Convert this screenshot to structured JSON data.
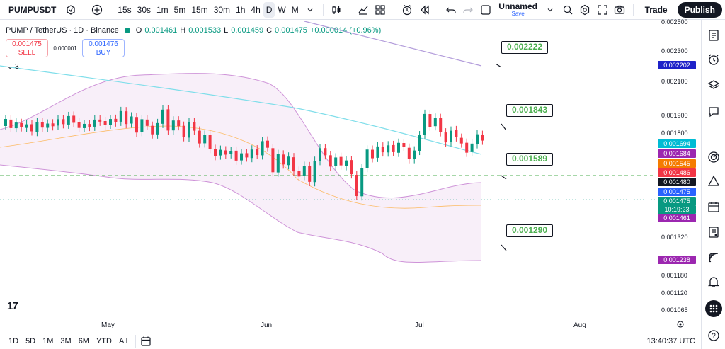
{
  "toolbar": {
    "symbol": "PUMPUSDT",
    "intervals": [
      "15s",
      "30s",
      "1m",
      "5m",
      "15m",
      "30m",
      "1h",
      "4h",
      "D",
      "W",
      "M"
    ],
    "active_interval": "D",
    "layout_name": "Unnamed",
    "save_label": "Save",
    "trade_label": "Trade",
    "publish_label": "Publish"
  },
  "legend": {
    "title": "PUMP / TetherUS · 1D · Binance",
    "o_key": "O",
    "o_val": "0.001461",
    "h_key": "H",
    "h_val": "0.001533",
    "l_key": "L",
    "l_val": "0.001459",
    "c_key": "C",
    "c_val": "0.001475",
    "change": "+0.000014 (+0.96%)",
    "collapse": "3"
  },
  "bidask": {
    "sell_price": "0.001475",
    "sell_label": "SELL",
    "spread": "0.000001",
    "buy_price": "0.001476",
    "buy_label": "BUY"
  },
  "price_scale": {
    "ticks": [
      "0.002500",
      "0.002300",
      "0.002100",
      "0.001900",
      "0.001800",
      "0.001320",
      "0.001180",
      "0.001120",
      "0.001065"
    ],
    "labels": [
      {
        "text": "0.002202",
        "color": "#1e22c8"
      },
      {
        "text": "0.001694",
        "color": "#00bcd4"
      },
      {
        "text": "0.001684",
        "color": "#9c27b0"
      },
      {
        "text": "0.001545",
        "color": "#f57c00"
      },
      {
        "text": "0.001486",
        "color": "#f23645"
      },
      {
        "text": "0.001480",
        "color": "#131722"
      },
      {
        "text": "0.001475",
        "color": "#2962ff"
      },
      {
        "text": "0.001475",
        "color": "#089981"
      },
      {
        "text": "10:19:23",
        "color": "#089981"
      },
      {
        "text": "0.001461",
        "color": "#9c27b0"
      },
      {
        "text": "0.001238",
        "color": "#9c27b0"
      }
    ]
  },
  "callouts": [
    "0.002222",
    "0.001843",
    "0.001589",
    "0.001290"
  ],
  "time_axis": [
    "May",
    "Jun",
    "Jul",
    "Aug"
  ],
  "ranges": [
    "1D",
    "5D",
    "1M",
    "3M",
    "6M",
    "YTD",
    "All"
  ],
  "clock": "13:40:37 UTC",
  "logo": "17",
  "colors": {
    "up": "#089981",
    "down": "#f23645",
    "accent": "#2962ff"
  }
}
